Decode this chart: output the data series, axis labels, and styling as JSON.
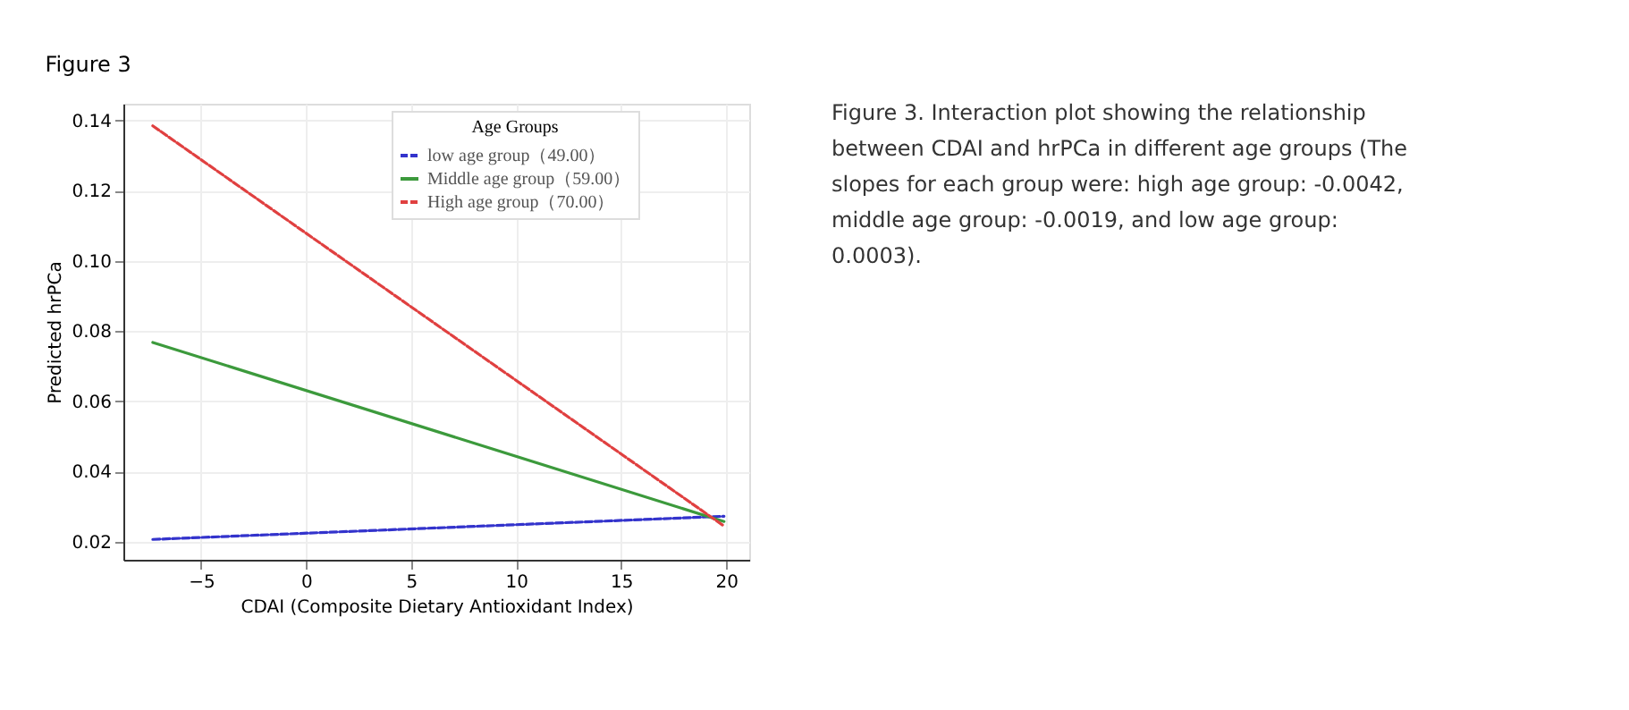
{
  "chart_data": {
    "type": "line",
    "title": "Figure 3",
    "xlabel": "CDAI (Composite Dietary Antioxidant Index)",
    "ylabel": "Predicted hrPCa",
    "legend_title": "Age Groups",
    "x": [
      -7.3,
      19.9
    ],
    "series": [
      {
        "name": "low age group（49.00）",
        "color": "#3333cc",
        "line_style": "dashed",
        "values": [
          0.0207,
          0.0273
        ]
      },
      {
        "name": "Middle age group（59.00）",
        "color": "#3c9a3c",
        "line_style": "solid",
        "values": [
          0.0768,
          0.0258
        ]
      },
      {
        "name": "High age group（70.00）",
        "color": "#e04040",
        "line_style": "dashed",
        "values": [
          0.1385,
          0.0245
        ]
      }
    ],
    "xlim": [
      -8.7,
      21.1
    ],
    "xticks": [
      {
        "value": -5,
        "label": "−5"
      },
      0,
      5,
      10,
      15,
      20
    ],
    "ylim": [
      0.0149,
      0.1448
    ],
    "yticks": [
      {
        "value": 0.02,
        "label": "0.02"
      },
      {
        "value": 0.04,
        "label": "0.04"
      },
      {
        "value": 0.06,
        "label": "0.06"
      },
      {
        "value": 0.08,
        "label": "0.08"
      },
      {
        "value": 0.1,
        "label": "0.10"
      },
      {
        "value": 0.12,
        "label": "0.12"
      },
      {
        "value": 0.14,
        "label": "0.14"
      }
    ],
    "grid": true,
    "legend": "top right",
    "marker": "none",
    "annotations": [
      "Figure 3. Interaction plot showing the relationship between CDAI and hrPCa in different age groups (The slopes for each group were: high age group: -0.0042, middle age group: -0.0019, and low age group: 0.0003)."
    ]
  }
}
